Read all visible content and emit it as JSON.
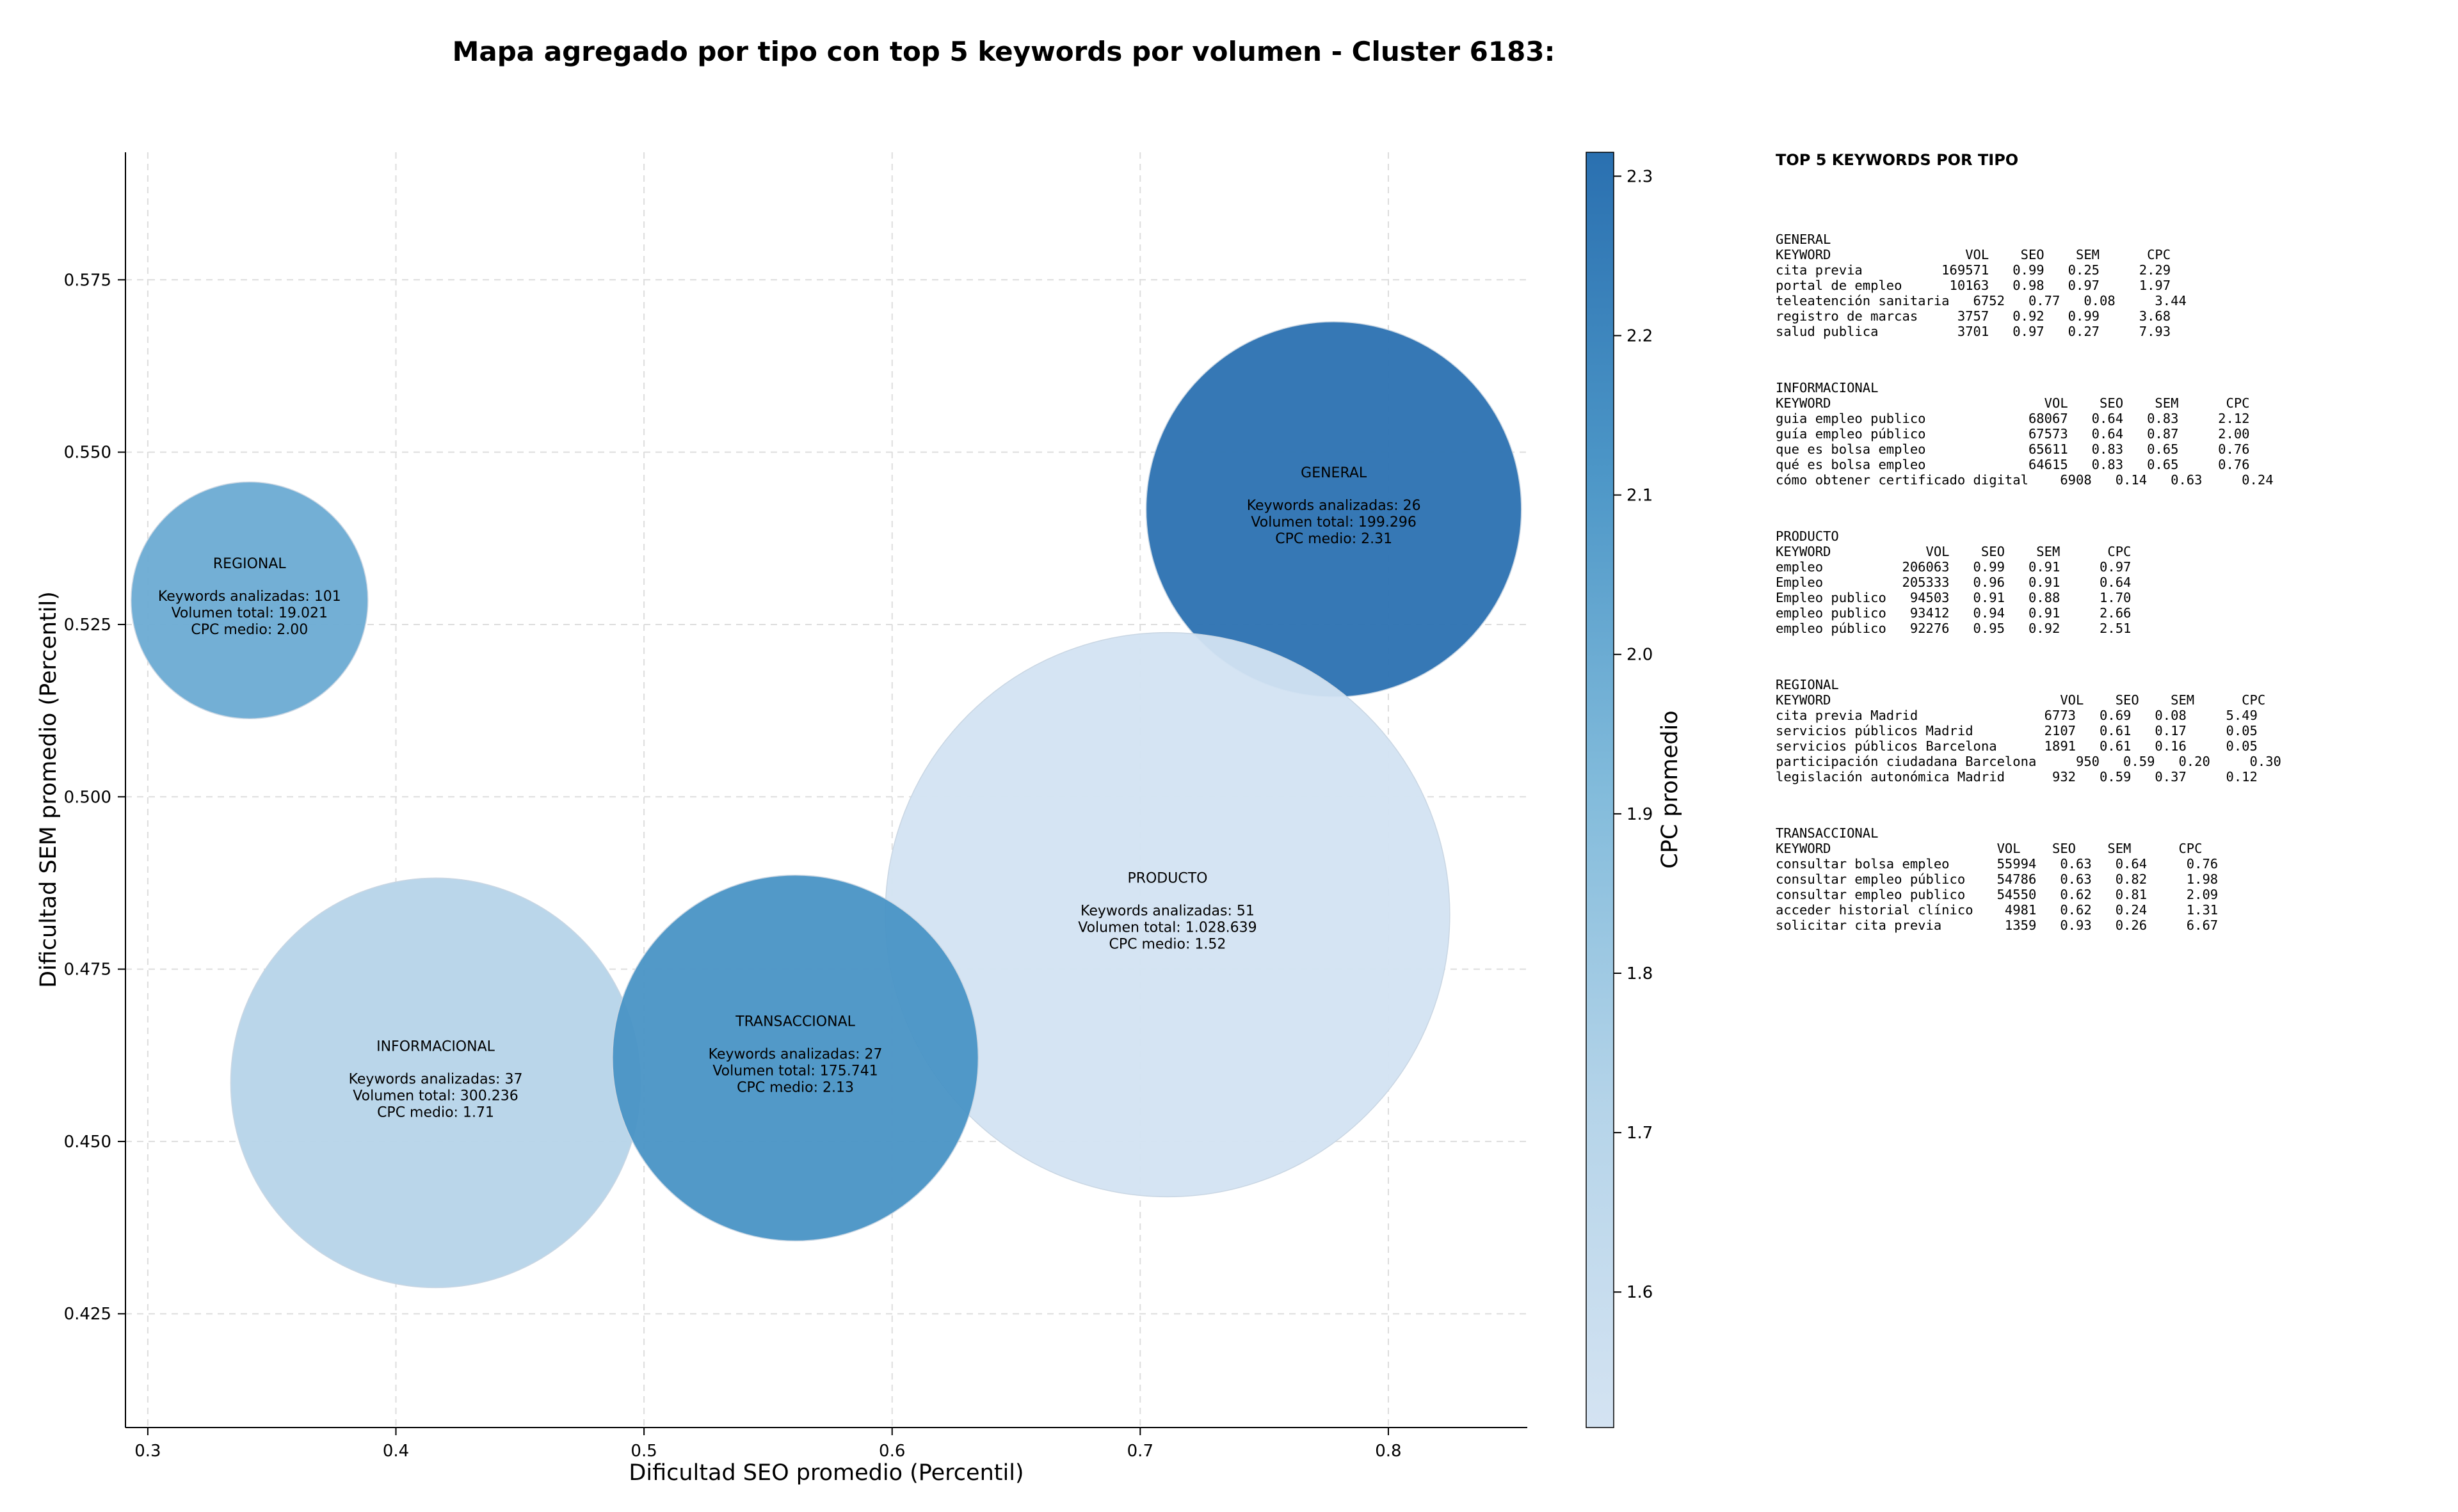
{
  "chart_data": {
    "type": "scatter",
    "title": "Mapa agregado por tipo con top 5 keywords por volumen - Cluster 6183:",
    "xlabel": "Dificultad SEO promedio (Percentil)",
    "ylabel": "Dificultad SEM promedio (Percentil)",
    "xlim": [
      0.291,
      0.856
    ],
    "ylim": [
      0.4085,
      0.5935
    ],
    "xticks": [
      "0.3",
      "0.4",
      "0.5",
      "0.6",
      "0.7",
      "0.8"
    ],
    "yticks": [
      "0.425",
      "0.450",
      "0.475",
      "0.500",
      "0.525",
      "0.550",
      "0.575"
    ],
    "grid": true,
    "colorbar": {
      "label": "CPC promedio",
      "min": 1.515,
      "max": 2.315,
      "ticks": [
        "1.6",
        "1.7",
        "1.8",
        "1.9",
        "2.0",
        "2.1",
        "2.2",
        "2.3"
      ]
    },
    "points": [
      {
        "label": "REGIONAL",
        "x": 0.341,
        "y": 0.5285,
        "cpc": 2.0,
        "volume": 19021,
        "line1": "Keywords analizadas: 101",
        "line2": "Volumen total: 19.021",
        "line3": "CPC medio: 2.00"
      },
      {
        "label": "GENERAL",
        "x": 0.778,
        "y": 0.5417,
        "cpc": 2.31,
        "volume": 199296,
        "line1": "Keywords analizadas: 26",
        "line2": "Volumen total: 199.296",
        "line3": "CPC medio: 2.31"
      },
      {
        "label": "PRODUCTO",
        "x": 0.711,
        "y": 0.4829,
        "cpc": 1.52,
        "volume": 1028639,
        "line1": "Keywords analizadas: 51",
        "line2": "Volumen total: 1.028.639",
        "line3": "CPC medio: 1.52"
      },
      {
        "label": "INFORMACIONAL",
        "x": 0.416,
        "y": 0.4585,
        "cpc": 1.71,
        "volume": 300236,
        "line1": "Keywords analizadas: 37",
        "line2": "Volumen total: 300.236",
        "line3": "CPC medio: 1.71"
      },
      {
        "label": "TRANSACCIONAL",
        "x": 0.561,
        "y": 0.4621,
        "cpc": 2.13,
        "volume": 175741,
        "line1": "Keywords analizadas: 27",
        "line2": "Volumen total: 175.741",
        "line3": "CPC medio: 2.13"
      }
    ]
  },
  "side_panel": {
    "title": "TOP 5 KEYWORDS POR TIPO",
    "tables": [
      {
        "name": "GENERAL",
        "rows": [
          "KEYWORD                 VOL    SEO    SEM      CPC",
          "cita previa          169571   0.99   0.25     2.29",
          "portal de empleo      10163   0.98   0.97     1.97",
          "teleatención sanitaria   6752   0.77   0.08     3.44",
          "registro de marcas     3757   0.92   0.99     3.68",
          "salud publica          3701   0.97   0.27     7.93"
        ]
      },
      {
        "name": "INFORMACIONAL",
        "rows": [
          "KEYWORD                           VOL    SEO    SEM      CPC",
          "guia empleo publico             68067   0.64   0.83     2.12",
          "guía empleo público             67573   0.64   0.87     2.00",
          "que es bolsa empleo             65611   0.83   0.65     0.76",
          "qué es bolsa empleo             64615   0.83   0.65     0.76",
          "cómo obtener certificado digital    6908   0.14   0.63     0.24"
        ]
      },
      {
        "name": "PRODUCTO",
        "rows": [
          "KEYWORD            VOL    SEO    SEM      CPC",
          "empleo          206063   0.99   0.91     0.97",
          "Empleo          205333   0.96   0.91     0.64",
          "Empleo publico   94503   0.91   0.88     1.70",
          "empleo publico   93412   0.94   0.91     2.66",
          "empleo público   92276   0.95   0.92     2.51"
        ]
      },
      {
        "name": "REGIONAL",
        "rows": [
          "KEYWORD                             VOL    SEO    SEM      CPC",
          "cita previa Madrid                6773   0.69   0.08     5.49",
          "servicios públicos Madrid         2107   0.61   0.17     0.05",
          "servicios públicos Barcelona      1891   0.61   0.16     0.05",
          "participación ciudadana Barcelona     950   0.59   0.20     0.30",
          "legislación autonómica Madrid      932   0.59   0.37     0.12"
        ]
      },
      {
        "name": "TRANSACCIONAL",
        "rows": [
          "KEYWORD                     VOL    SEO    SEM      CPC",
          "consultar bolsa empleo      55994   0.63   0.64     0.76",
          "consultar empleo público    54786   0.63   0.82     1.98",
          "consultar empleo publico    54550   0.62   0.81     2.09",
          "acceder historial clínico    4981   0.62   0.24     1.31",
          "solicitar cita previa        1359   0.93   0.26     6.67"
        ]
      }
    ]
  }
}
